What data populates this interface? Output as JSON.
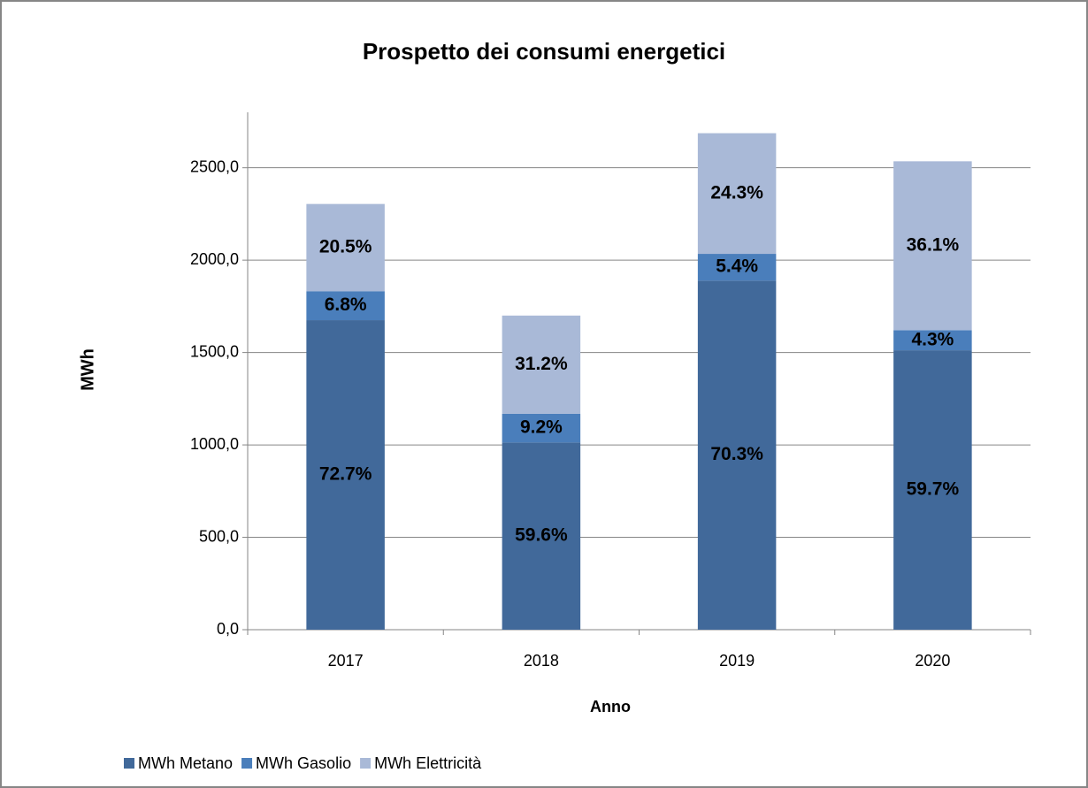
{
  "chart_data": {
    "type": "stacked_bar",
    "title": "Prospetto dei consumi energetici",
    "x_label": "Anno",
    "y_label": "MWh",
    "categories": [
      "2017",
      "2018",
      "2019",
      "2020"
    ],
    "series": [
      {
        "name": "MWh Metano",
        "color": "#41699a",
        "values": [
          1675,
          1013,
          1889,
          1512
        ],
        "share_labels": [
          "72.7%",
          "59.6%",
          "70.3%",
          "59.7%"
        ]
      },
      {
        "name": "MWh Gasolio",
        "color": "#4a7ebb",
        "values": [
          157,
          156,
          145,
          109
        ],
        "share_labels": [
          "6.8%",
          "9.2%",
          "5.4%",
          "4.3%"
        ]
      },
      {
        "name": "MWh Elettricità",
        "color": "#a9b9d7",
        "values": [
          472,
          531,
          653,
          914
        ],
        "share_labels": [
          "20.5%",
          "31.2%",
          "24.3%",
          "36.1%"
        ]
      }
    ],
    "ylim": [
      0,
      2800
    ],
    "yticks": [
      {
        "value": 0,
        "label": "0,0"
      },
      {
        "value": 500,
        "label": "500,0"
      },
      {
        "value": 1000,
        "label": "1000,0"
      },
      {
        "value": 1500,
        "label": "1500,0"
      },
      {
        "value": 2000,
        "label": "2000,0"
      },
      {
        "value": 2500,
        "label": "2500,0"
      }
    ],
    "grid": true,
    "legend": "bottom-left"
  }
}
